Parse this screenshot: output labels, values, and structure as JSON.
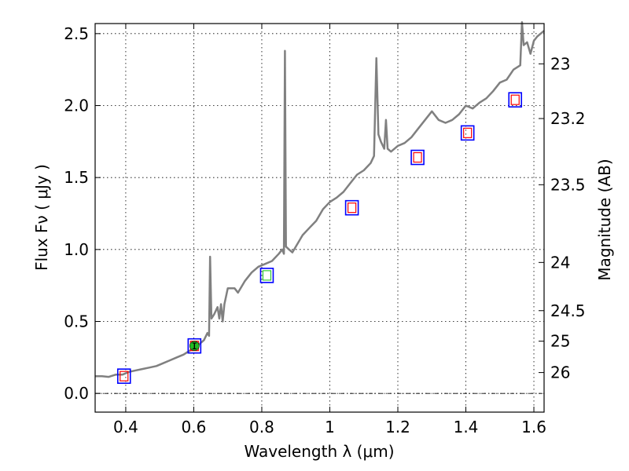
{
  "chart_data": {
    "type": "line",
    "title": "",
    "xlabel": "Wavelength  λ (μm)",
    "ylabel": "Flux  Fν  ( μJy )",
    "ylabel_right": "Magnitude (AB)",
    "xlim": [
      0.31,
      1.63
    ],
    "ylim": [
      -0.13,
      2.57
    ],
    "x_ticks": [
      0.4,
      0.6,
      0.8,
      1.0,
      1.2,
      1.4,
      1.6
    ],
    "x_tick_labels": [
      "0.4",
      "0.6",
      "0.8",
      "1",
      "1.2",
      "1.4",
      "1.6"
    ],
    "y_ticks": [
      0.0,
      0.5,
      1.0,
      1.5,
      2.0,
      2.5
    ],
    "y_tick_labels": [
      "0.0",
      "0.5",
      "1.0",
      "1.5",
      "2.0",
      "2.5"
    ],
    "mag_ticks": [
      {
        "label": "23",
        "flux": 2.29
      },
      {
        "label": "23.2",
        "flux": 1.91
      },
      {
        "label": "23.5",
        "flux": 1.45
      },
      {
        "label": "24",
        "flux": 0.91
      },
      {
        "label": "24.5",
        "flux": 0.575
      },
      {
        "label": "25",
        "flux": 0.363
      },
      {
        "label": "26",
        "flux": 0.145
      }
    ],
    "zero_line": 0.0,
    "grid": true,
    "colors": {
      "spectrum": "#808080",
      "box_outer": "#0000ff",
      "box_inner_red": "#ff0000",
      "box_inner_green": "#33cc33",
      "point": "#22bb22"
    },
    "spectrum": [
      [
        0.31,
        0.12
      ],
      [
        0.33,
        0.12
      ],
      [
        0.35,
        0.115
      ],
      [
        0.37,
        0.13
      ],
      [
        0.39,
        0.13
      ],
      [
        0.41,
        0.15
      ],
      [
        0.43,
        0.16
      ],
      [
        0.45,
        0.17
      ],
      [
        0.47,
        0.18
      ],
      [
        0.49,
        0.19
      ],
      [
        0.51,
        0.21
      ],
      [
        0.53,
        0.23
      ],
      [
        0.55,
        0.25
      ],
      [
        0.57,
        0.27
      ],
      [
        0.59,
        0.3
      ],
      [
        0.61,
        0.33
      ],
      [
        0.63,
        0.37
      ],
      [
        0.64,
        0.42
      ],
      [
        0.645,
        0.4
      ],
      [
        0.648,
        0.95
      ],
      [
        0.652,
        0.52
      ],
      [
        0.66,
        0.55
      ],
      [
        0.67,
        0.6
      ],
      [
        0.675,
        0.52
      ],
      [
        0.68,
        0.62
      ],
      [
        0.685,
        0.5
      ],
      [
        0.69,
        0.62
      ],
      [
        0.7,
        0.73
      ],
      [
        0.72,
        0.73
      ],
      [
        0.73,
        0.7
      ],
      [
        0.75,
        0.78
      ],
      [
        0.77,
        0.84
      ],
      [
        0.79,
        0.88
      ],
      [
        0.81,
        0.9
      ],
      [
        0.83,
        0.92
      ],
      [
        0.85,
        0.97
      ],
      [
        0.86,
        1.0
      ],
      [
        0.865,
        0.97
      ],
      [
        0.868,
        2.38
      ],
      [
        0.871,
        1.02
      ],
      [
        0.88,
        1.0
      ],
      [
        0.89,
        0.98
      ],
      [
        0.9,
        1.02
      ],
      [
        0.92,
        1.1
      ],
      [
        0.94,
        1.15
      ],
      [
        0.96,
        1.2
      ],
      [
        0.98,
        1.28
      ],
      [
        1.0,
        1.33
      ],
      [
        1.02,
        1.36
      ],
      [
        1.04,
        1.4
      ],
      [
        1.06,
        1.46
      ],
      [
        1.08,
        1.52
      ],
      [
        1.1,
        1.55
      ],
      [
        1.12,
        1.6
      ],
      [
        1.13,
        1.65
      ],
      [
        1.137,
        2.33
      ],
      [
        1.143,
        1.8
      ],
      [
        1.15,
        1.75
      ],
      [
        1.16,
        1.7
      ],
      [
        1.165,
        1.9
      ],
      [
        1.17,
        1.7
      ],
      [
        1.18,
        1.68
      ],
      [
        1.2,
        1.72
      ],
      [
        1.22,
        1.74
      ],
      [
        1.24,
        1.78
      ],
      [
        1.26,
        1.84
      ],
      [
        1.28,
        1.9
      ],
      [
        1.3,
        1.96
      ],
      [
        1.32,
        1.9
      ],
      [
        1.34,
        1.88
      ],
      [
        1.36,
        1.9
      ],
      [
        1.38,
        1.94
      ],
      [
        1.4,
        2.0
      ],
      [
        1.42,
        1.98
      ],
      [
        1.44,
        2.02
      ],
      [
        1.46,
        2.05
      ],
      [
        1.48,
        2.1
      ],
      [
        1.5,
        2.16
      ],
      [
        1.52,
        2.18
      ],
      [
        1.54,
        2.25
      ],
      [
        1.56,
        2.28
      ],
      [
        1.565,
        2.58
      ],
      [
        1.57,
        2.42
      ],
      [
        1.58,
        2.44
      ],
      [
        1.59,
        2.36
      ],
      [
        1.6,
        2.45
      ],
      [
        1.61,
        2.48
      ],
      [
        1.62,
        2.5
      ],
      [
        1.63,
        2.52
      ]
    ],
    "photometry_boxes": [
      {
        "x": 0.395,
        "y": 0.12,
        "inner": "red"
      },
      {
        "x": 0.602,
        "y": 0.33,
        "inner": "red"
      },
      {
        "x": 0.815,
        "y": 0.82,
        "inner": "green"
      },
      {
        "x": 1.065,
        "y": 1.29,
        "inner": "red"
      },
      {
        "x": 1.258,
        "y": 1.64,
        "inner": "red"
      },
      {
        "x": 1.405,
        "y": 1.81,
        "inner": "red"
      },
      {
        "x": 1.545,
        "y": 2.04,
        "inner": "red"
      }
    ],
    "observed_point": {
      "x": 0.602,
      "y": 0.33,
      "yerr": 0.02
    }
  }
}
